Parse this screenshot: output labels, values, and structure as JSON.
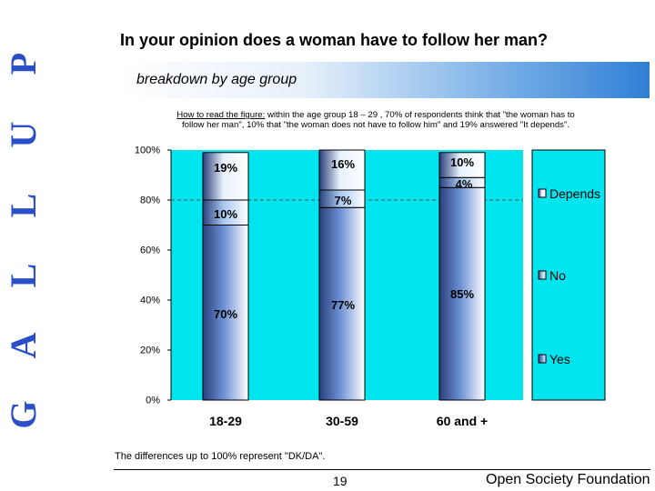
{
  "brand": {
    "letters": [
      "G",
      "A",
      "L",
      "L",
      "U",
      "P"
    ]
  },
  "header": {
    "title": "In your opinion does a woman have to follow her man?",
    "subtitle": "breakdown by age group"
  },
  "how_to_read": {
    "label": "How to read the figure:",
    "line1_rest": " within the age group 18 – 29 , 70% of respondents think that  \"the woman has to",
    "line2": "follow her man\", 10% that \"the woman does not have to follow him\" and 19% answered  \"It depends\"."
  },
  "footer": {
    "note": "The differences up to 100% represent \"DK/DA\".",
    "page": "19",
    "org": "Open Society Foundation"
  },
  "chart_data": {
    "type": "bar",
    "stacked": true,
    "categories": [
      "18-29",
      "30-59",
      "60 and +"
    ],
    "series": [
      {
        "name": "Yes",
        "values": [
          70,
          77,
          85
        ],
        "labels": [
          "70%",
          "77%",
          "85%"
        ],
        "color": "#6b8fd4"
      },
      {
        "name": "No",
        "values": [
          10,
          7,
          4
        ],
        "labels": [
          "10%",
          "7%",
          "4%"
        ],
        "color": "#a8c8f0"
      },
      {
        "name": "Depends",
        "values": [
          19,
          16,
          10
        ],
        "labels": [
          "19%",
          "16%",
          "10%"
        ],
        "color": "#e8f2fc"
      }
    ],
    "ylim": [
      0,
      100
    ],
    "yticks": [
      0,
      20,
      40,
      60,
      80,
      100
    ],
    "ytick_labels": [
      "0%",
      "20%",
      "40%",
      "60%",
      "80%",
      "100%"
    ],
    "reference_line": 80,
    "legend_position": "right",
    "plot_background": "#00e5ee",
    "title": "",
    "xlabel": "",
    "ylabel": ""
  }
}
